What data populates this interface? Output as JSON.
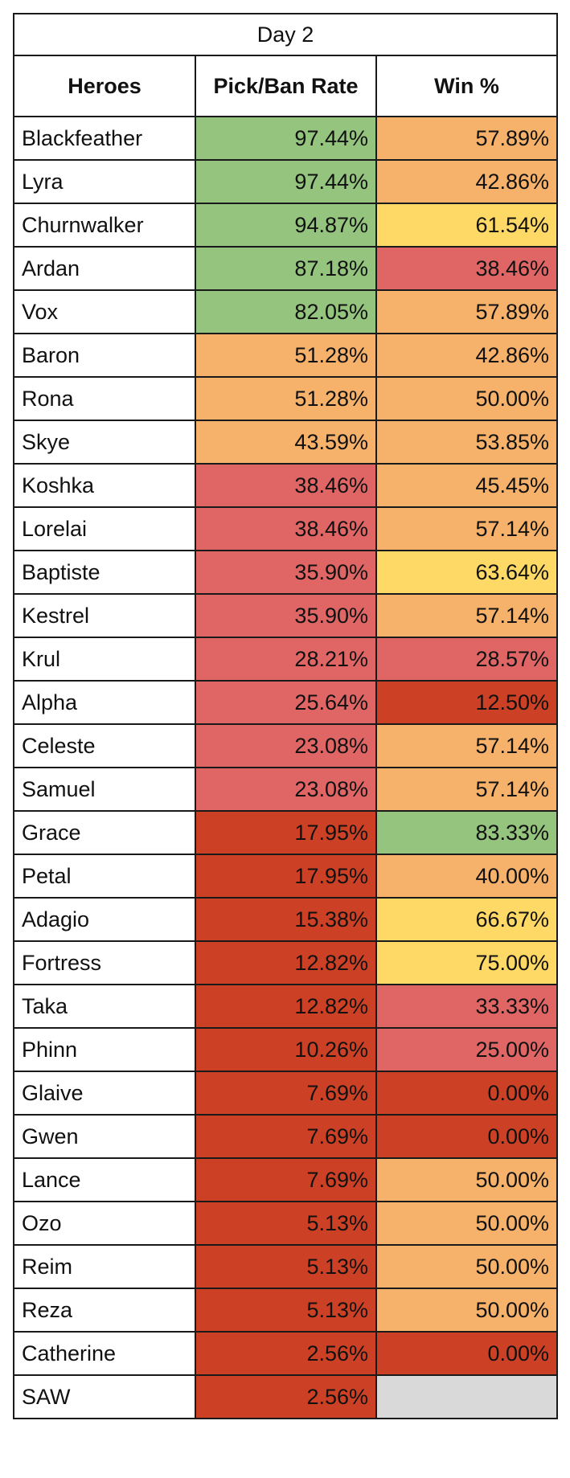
{
  "title": "Day 2",
  "headers": [
    "Heroes",
    "Pick/Ban Rate",
    "Win %"
  ],
  "colors": {
    "green": "#94c47e",
    "orange": "#f6b26b",
    "yellow": "#ffd966",
    "salmon": "#e06666",
    "red": "#cc4125",
    "gray": "#d9d9d9"
  },
  "rows": [
    {
      "hero": "Blackfeather",
      "pick_ban": "97.44%",
      "pick_ban_color": "green",
      "win": "57.89%",
      "win_color": "orange"
    },
    {
      "hero": "Lyra",
      "pick_ban": "97.44%",
      "pick_ban_color": "green",
      "win": "42.86%",
      "win_color": "orange"
    },
    {
      "hero": "Churnwalker",
      "pick_ban": "94.87%",
      "pick_ban_color": "green",
      "win": "61.54%",
      "win_color": "yellow"
    },
    {
      "hero": "Ardan",
      "pick_ban": "87.18%",
      "pick_ban_color": "green",
      "win": "38.46%",
      "win_color": "salmon"
    },
    {
      "hero": "Vox",
      "pick_ban": "82.05%",
      "pick_ban_color": "green",
      "win": "57.89%",
      "win_color": "orange"
    },
    {
      "hero": "Baron",
      "pick_ban": "51.28%",
      "pick_ban_color": "orange",
      "win": "42.86%",
      "win_color": "orange"
    },
    {
      "hero": "Rona",
      "pick_ban": "51.28%",
      "pick_ban_color": "orange",
      "win": "50.00%",
      "win_color": "orange"
    },
    {
      "hero": "Skye",
      "pick_ban": "43.59%",
      "pick_ban_color": "orange",
      "win": "53.85%",
      "win_color": "orange"
    },
    {
      "hero": "Koshka",
      "pick_ban": "38.46%",
      "pick_ban_color": "salmon",
      "win": "45.45%",
      "win_color": "orange"
    },
    {
      "hero": "Lorelai",
      "pick_ban": "38.46%",
      "pick_ban_color": "salmon",
      "win": "57.14%",
      "win_color": "orange"
    },
    {
      "hero": "Baptiste",
      "pick_ban": "35.90%",
      "pick_ban_color": "salmon",
      "win": "63.64%",
      "win_color": "yellow"
    },
    {
      "hero": "Kestrel",
      "pick_ban": "35.90%",
      "pick_ban_color": "salmon",
      "win": "57.14%",
      "win_color": "orange"
    },
    {
      "hero": "Krul",
      "pick_ban": "28.21%",
      "pick_ban_color": "salmon",
      "win": "28.57%",
      "win_color": "salmon"
    },
    {
      "hero": "Alpha",
      "pick_ban": "25.64%",
      "pick_ban_color": "salmon",
      "win": "12.50%",
      "win_color": "red"
    },
    {
      "hero": "Celeste",
      "pick_ban": "23.08%",
      "pick_ban_color": "salmon",
      "win": "57.14%",
      "win_color": "orange"
    },
    {
      "hero": "Samuel",
      "pick_ban": "23.08%",
      "pick_ban_color": "salmon",
      "win": "57.14%",
      "win_color": "orange"
    },
    {
      "hero": "Grace",
      "pick_ban": "17.95%",
      "pick_ban_color": "red",
      "win": "83.33%",
      "win_color": "green"
    },
    {
      "hero": "Petal",
      "pick_ban": "17.95%",
      "pick_ban_color": "red",
      "win": "40.00%",
      "win_color": "orange"
    },
    {
      "hero": "Adagio",
      "pick_ban": "15.38%",
      "pick_ban_color": "red",
      "win": "66.67%",
      "win_color": "yellow"
    },
    {
      "hero": "Fortress",
      "pick_ban": "12.82%",
      "pick_ban_color": "red",
      "win": "75.00%",
      "win_color": "yellow"
    },
    {
      "hero": "Taka",
      "pick_ban": "12.82%",
      "pick_ban_color": "red",
      "win": "33.33%",
      "win_color": "salmon"
    },
    {
      "hero": "Phinn",
      "pick_ban": "10.26%",
      "pick_ban_color": "red",
      "win": "25.00%",
      "win_color": "salmon"
    },
    {
      "hero": "Glaive",
      "pick_ban": "7.69%",
      "pick_ban_color": "red",
      "win": "0.00%",
      "win_color": "red"
    },
    {
      "hero": "Gwen",
      "pick_ban": "7.69%",
      "pick_ban_color": "red",
      "win": "0.00%",
      "win_color": "red"
    },
    {
      "hero": "Lance",
      "pick_ban": "7.69%",
      "pick_ban_color": "red",
      "win": "50.00%",
      "win_color": "orange"
    },
    {
      "hero": "Ozo",
      "pick_ban": "5.13%",
      "pick_ban_color": "red",
      "win": "50.00%",
      "win_color": "orange"
    },
    {
      "hero": "Reim",
      "pick_ban": "5.13%",
      "pick_ban_color": "red",
      "win": "50.00%",
      "win_color": "orange"
    },
    {
      "hero": "Reza",
      "pick_ban": "5.13%",
      "pick_ban_color": "red",
      "win": "50.00%",
      "win_color": "orange"
    },
    {
      "hero": "Catherine",
      "pick_ban": "2.56%",
      "pick_ban_color": "red",
      "win": "0.00%",
      "win_color": "red"
    },
    {
      "hero": "SAW",
      "pick_ban": "2.56%",
      "pick_ban_color": "red",
      "win": "",
      "win_color": "gray"
    }
  ]
}
